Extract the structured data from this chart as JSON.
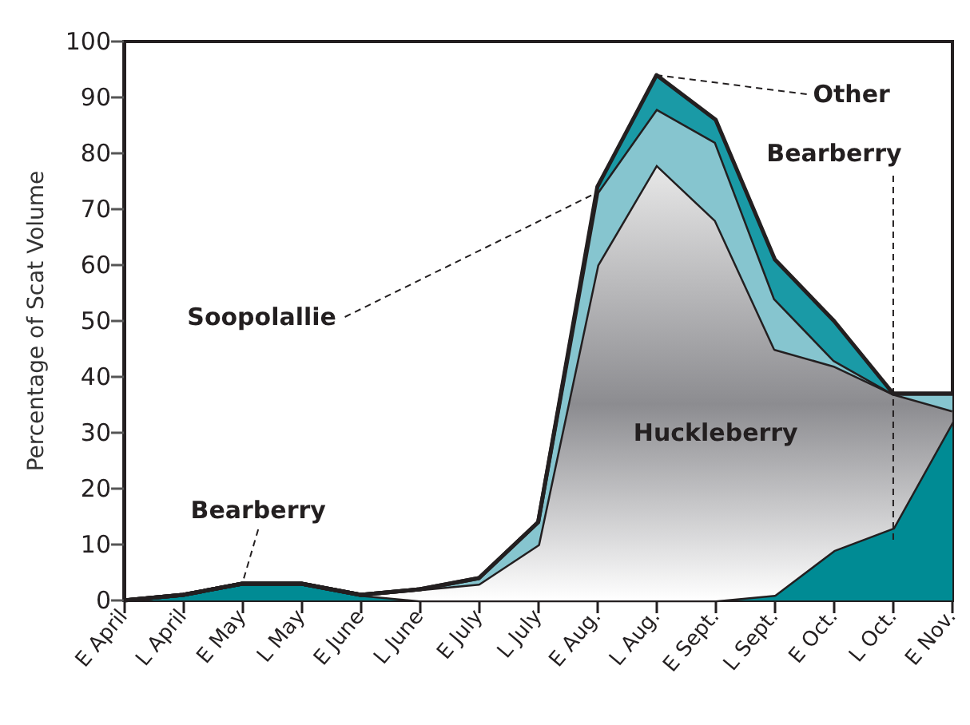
{
  "chart_data": {
    "type": "area",
    "stacked": true,
    "ylabel": "Percentage of Scat Volume",
    "categories": [
      "E April",
      "L April",
      "E May",
      "L May",
      "E June",
      "L June",
      "E July",
      "L July",
      "E Aug.",
      "L Aug.",
      "E Sept.",
      "L Sept.",
      "E Oct.",
      "L Oct.",
      "E Nov."
    ],
    "series": [
      {
        "color": "#008b94",
        "values": [
          0,
          1,
          3,
          3,
          1,
          0,
          0,
          0,
          0,
          0,
          0,
          1,
          9,
          13,
          32
        ]
      },
      {
        "color": "#8c8c90",
        "values": [
          0,
          0,
          0,
          0,
          0,
          2,
          3,
          10,
          60,
          78,
          68,
          44,
          33,
          24,
          2
        ]
      },
      {
        "color": "#86c5cf",
        "values": [
          0,
          0,
          0,
          0,
          0,
          0,
          1,
          4,
          13,
          10,
          14,
          9,
          1,
          0,
          3
        ]
      },
      {
        "color": "#1a9aa6",
        "values": [
          0,
          0,
          0,
          0,
          0,
          0,
          0,
          0,
          1,
          6,
          4,
          7,
          7,
          0,
          0
        ]
      }
    ],
    "annotations": [
      {
        "text": "Bearberry",
        "x": "E May",
        "y": 3
      },
      {
        "text": "Soopolallie",
        "x": "E Aug.",
        "y": 73
      },
      {
        "text": "Other",
        "x": "L Aug.",
        "y": 94
      },
      "Bearberry",
      "Huckleberry"
    ],
    "ylim": [
      0,
      100
    ],
    "yticks": [
      0,
      10,
      20,
      30,
      40,
      50,
      60,
      70,
      80,
      90,
      100
    ],
    "grid": false,
    "marker": "none",
    "line_style": "solid"
  }
}
